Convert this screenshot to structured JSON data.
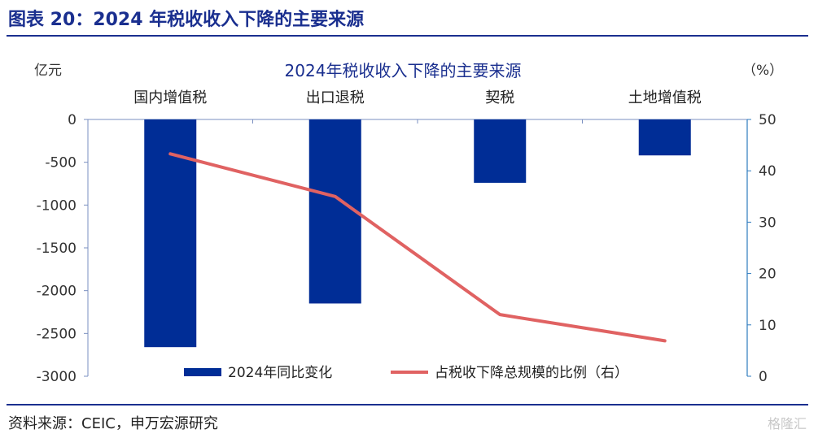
{
  "figure": {
    "title": "图表 20：2024 年税收收入下降的主要来源",
    "source": "资料来源：CEIC，申万宏源研究",
    "watermark": "格隆汇"
  },
  "chart_data": {
    "type": "bar",
    "title": "2024年税收收入下降的主要来源",
    "categories": [
      "国内增值税",
      "出口退税",
      "契税",
      "土地增值税"
    ],
    "y_left_unit": "亿元",
    "y_right_unit": "（%）",
    "ylim_left": [
      -3000,
      0
    ],
    "ylim_right": [
      0,
      50
    ],
    "yticks_left": [
      "0",
      "-500",
      "-1000",
      "-1500",
      "-2000",
      "-2500",
      "-3000"
    ],
    "yticks_right": [
      "50",
      "40",
      "30",
      "20",
      "10",
      "0"
    ],
    "series": [
      {
        "name": "2024年同比变化",
        "type": "bar",
        "axis": "left",
        "color": "#002d96",
        "values": [
          -2660,
          -2150,
          -740,
          -420
        ]
      },
      {
        "name": "占税收下降总规模的比例（右）",
        "type": "line",
        "axis": "right",
        "color": "#e06262",
        "values": [
          43.3,
          35.0,
          12.0,
          6.9
        ]
      }
    ],
    "legend_position": "bottom"
  }
}
